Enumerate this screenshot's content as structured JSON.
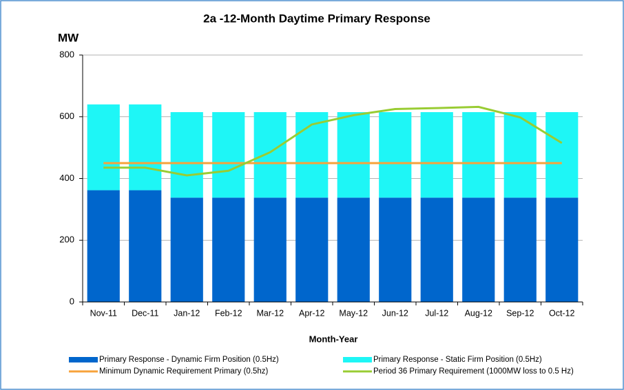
{
  "chart_data": {
    "type": "bar",
    "stacked": true,
    "title": "2a -12-Month Daytime Primary Response",
    "y_label": "MW",
    "x_label": "Month-Year",
    "categories": [
      "Nov-11",
      "Dec-11",
      "Jan-12",
      "Feb-12",
      "Mar-12",
      "Apr-12",
      "May-12",
      "Jun-12",
      "Jul-12",
      "Aug-12",
      "Sep-12",
      "Oct-12"
    ],
    "series": [
      {
        "name": "Primary Response - Dynamic Firm Position (0.5Hz)",
        "color": "#0066cc",
        "type": "bar",
        "values": [
          362,
          362,
          338,
          338,
          338,
          338,
          338,
          338,
          338,
          338,
          338,
          338
        ]
      },
      {
        "name": "Primary Response - Static Firm Position (0.5Hz)",
        "color": "#1ef6f6",
        "type": "bar",
        "values": [
          278,
          278,
          277,
          277,
          277,
          277,
          277,
          277,
          277,
          277,
          277,
          277
        ]
      },
      {
        "name": "Minimum Dynamic Requirement Primary (0.5hz)",
        "color": "#f7a23a",
        "type": "line",
        "values": [
          450,
          450,
          450,
          450,
          450,
          450,
          450,
          450,
          450,
          450,
          450,
          450
        ]
      },
      {
        "name": "Period 36 Primary Requirement (1000MW loss to 0.5 Hz)",
        "color": "#99cc33",
        "type": "line",
        "values": [
          435,
          435,
          410,
          425,
          485,
          575,
          605,
          625,
          628,
          632,
          598,
          515
        ]
      }
    ],
    "ylim": [
      0,
      800
    ],
    "yticks": [
      0,
      200,
      400,
      600,
      800
    ],
    "grid": true
  }
}
